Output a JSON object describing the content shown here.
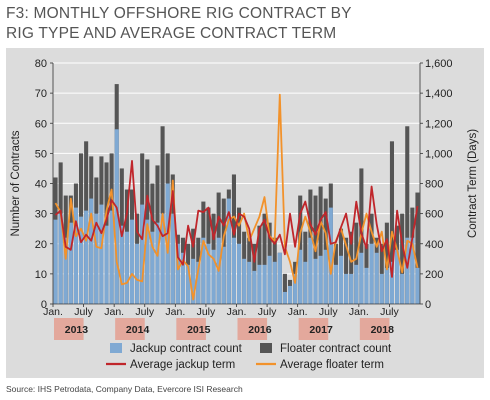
{
  "title_lines": [
    "F3: MONTHLY OFFSHORE RIG CONTRACT BY",
    "RIG TYPE AND AVERAGE CONTRACT TERM"
  ],
  "source": "Source: IHS Petrodata, Company Data, Evercore ISI Research",
  "colors": {
    "jackup_bar": "#7fa9d3",
    "floater_bar": "#555555",
    "jackup_term": "#c0262b",
    "floater_term": "#f2922b",
    "year_band": "#e3a89c",
    "panel": "#dcdcdc"
  },
  "chart_data": {
    "type": "bar",
    "title": "MONTHLY OFFSHORE RIG CONTRACT BY RIG TYPE AND AVERAGE CONTRACT TERM",
    "ylabel_left": "Number of Contracts",
    "ylabel_right": "Contract Term (Days)",
    "ylim_left": [
      0,
      80
    ],
    "ylim_right": [
      0,
      1600
    ],
    "yticks_left": [
      "0",
      "10",
      "20",
      "30",
      "40",
      "50",
      "60",
      "70",
      "80"
    ],
    "yticks_right": [
      "0",
      "200",
      "400",
      "600",
      "800",
      "1,000",
      "1,200",
      "1,400",
      "1,600"
    ],
    "x_start": "2013-01",
    "x_end": "2018-12",
    "month_labels": [
      "Jan.",
      "July",
      "Jan.",
      "July",
      "Jan.",
      "July",
      "Jan.",
      "July",
      "Jan.",
      "July",
      "Jan.",
      "July"
    ],
    "year_labels": [
      "2013",
      "2014",
      "2015",
      "2016",
      "2017",
      "2018"
    ],
    "grid": true,
    "legend_position": "bottom",
    "series": [
      {
        "name": "Jackup contract count",
        "kind": "bar",
        "axis": "left",
        "values": [
          28,
          30,
          22,
          27,
          32,
          29,
          31,
          35,
          30,
          33,
          26,
          31,
          58,
          26,
          24,
          28,
          20,
          33,
          28,
          24,
          27,
          30,
          40,
          30,
          20,
          17,
          13,
          15,
          14,
          22,
          20,
          18,
          22,
          19,
          35,
          22,
          20,
          15,
          14,
          11,
          13,
          13,
          16,
          14,
          17,
          4,
          6,
          10,
          18,
          14,
          22,
          15,
          16,
          18,
          32,
          13,
          16,
          10,
          10,
          13,
          17,
          12,
          20,
          17,
          10,
          12,
          14,
          18,
          10,
          22,
          22,
          12
        ]
      },
      {
        "name": "Floater contract count",
        "kind": "bar",
        "axis": "left",
        "values": [
          42,
          47,
          36,
          36,
          40,
          50,
          54,
          49,
          42,
          49,
          47,
          50,
          73,
          45,
          38,
          38,
          30,
          50,
          48,
          40,
          46,
          59,
          50,
          43,
          23,
          22,
          20,
          25,
          22,
          34,
          32,
          30,
          37,
          35,
          38,
          43,
          32,
          24,
          22,
          20,
          26,
          30,
          27,
          22,
          17,
          10,
          8,
          14,
          36,
          24,
          38,
          36,
          39,
          35,
          40,
          20,
          25,
          22,
          24,
          27,
          45,
          20,
          30,
          22,
          20,
          27,
          54,
          26,
          30,
          59,
          32,
          37
        ]
      },
      {
        "name": "Average jackup term",
        "kind": "line",
        "axis": "right",
        "values": [
          590,
          620,
          380,
          360,
          550,
          410,
          460,
          420,
          540,
          470,
          560,
          690,
          640,
          450,
          600,
          950,
          480,
          430,
          720,
          560,
          520,
          450,
          470,
          750,
          310,
          260,
          520,
          380,
          620,
          610,
          640,
          430,
          580,
          520,
          610,
          460,
          600,
          580,
          500,
          280,
          500,
          560,
          440,
          400,
          460,
          330,
          600,
          380,
          600,
          680,
          530,
          460,
          560,
          610,
          400,
          410,
          510,
          600,
          400,
          680,
          470,
          370,
          780,
          530,
          350,
          430,
          180,
          620,
          400,
          240,
          440,
          650
        ]
      },
      {
        "name": "Average floater term",
        "kind": "line",
        "axis": "right",
        "values": [
          670,
          610,
          300,
          700,
          450,
          500,
          420,
          600,
          380,
          370,
          620,
          760,
          280,
          130,
          140,
          200,
          160,
          150,
          530,
          380,
          320,
          600,
          340,
          820,
          230,
          290,
          250,
          30,
          230,
          420,
          330,
          300,
          220,
          450,
          560,
          580,
          520,
          600,
          420,
          500,
          580,
          710,
          450,
          420,
          1390,
          380,
          280,
          140,
          470,
          580,
          480,
          350,
          550,
          470,
          200,
          420,
          500,
          390,
          280,
          300,
          470,
          600,
          480,
          380,
          480,
          230,
          480,
          360,
          210,
          420,
          400,
          240
        ]
      }
    ]
  }
}
